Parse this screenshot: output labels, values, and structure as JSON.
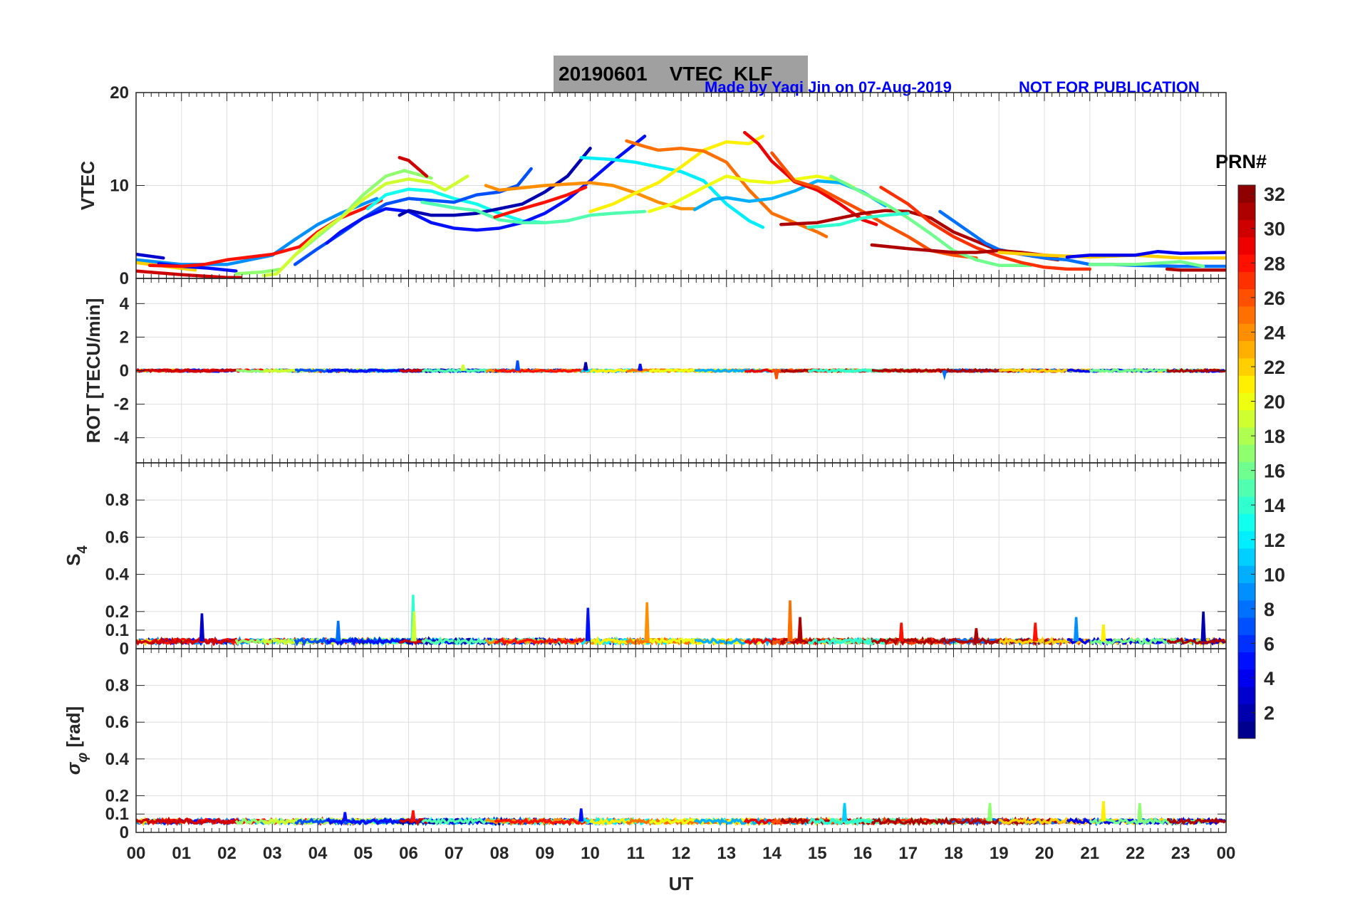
{
  "header": {
    "title": "20190601    VTEC  KLF",
    "credit": "Made by Yaqi Jin on 07-Aug-2019",
    "notice": "NOT FOR PUBLICATION"
  },
  "chart_data": {
    "type": "line",
    "x_axis": {
      "label": "UT",
      "range": [
        0,
        24
      ],
      "tick_labels": [
        "00",
        "01",
        "02",
        "03",
        "04",
        "05",
        "06",
        "07",
        "08",
        "09",
        "10",
        "11",
        "12",
        "13",
        "14",
        "15",
        "16",
        "17",
        "18",
        "19",
        "20",
        "21",
        "22",
        "23",
        "00"
      ]
    },
    "colorbar": {
      "label": "PRN#",
      "range": [
        1,
        32
      ],
      "colormap": "jet",
      "tick_labels": [
        "2",
        "4",
        "6",
        "8",
        "10",
        "12",
        "14",
        "16",
        "18",
        "20",
        "22",
        "24",
        "26",
        "28",
        "30",
        "32"
      ]
    },
    "panels": [
      {
        "id": "vtec",
        "ylabel": "VTEC",
        "ylim": [
          0,
          20
        ],
        "ticks": [
          0,
          10,
          20
        ],
        "tick_labels": [
          "0",
          "10",
          "20"
        ],
        "series": [
          {
            "prn": 3,
            "x": [
              0,
              0.3,
              0.6
            ],
            "y": [
              2.6,
              2.4,
              2.2
            ]
          },
          {
            "prn": 9,
            "x": [
              0,
              1,
              2,
              3,
              3.5,
              4,
              4.5,
              5,
              5.3
            ],
            "y": [
              2.0,
              1.5,
              1.5,
              2.5,
              4.2,
              5.8,
              7.0,
              8.0,
              8.6
            ]
          },
          {
            "prn": 22,
            "x": [
              0,
              0.8,
              1.3
            ],
            "y": [
              1.7,
              1.2,
              0.9
            ]
          },
          {
            "prn": 5,
            "x": [
              0.5,
              1,
              1.6,
              2.2
            ],
            "y": [
              1.6,
              1.3,
              1.1,
              0.8
            ]
          },
          {
            "prn": 28,
            "x": [
              0.3,
              1,
              1.5,
              2,
              2.5,
              3,
              3.6,
              4,
              4.5,
              5,
              5.4
            ],
            "y": [
              1.4,
              1.3,
              1.5,
              2.0,
              2.3,
              2.6,
              3.4,
              5.0,
              6.5,
              7.5,
              8.4
            ]
          },
          {
            "prn": 30,
            "x": [
              0,
              1,
              2,
              2.3
            ],
            "y": [
              0.8,
              0.4,
              0.1,
              0.1
            ]
          },
          {
            "prn": 17,
            "x": [
              2.2,
              2.8,
              3.2,
              3.5,
              4,
              4.5,
              5,
              5.5,
              5.9,
              6.2,
              6.5
            ],
            "y": [
              0.5,
              0.7,
              1.0,
              2.5,
              4.5,
              6.5,
              9.0,
              11.0,
              11.6,
              11.2,
              10.8
            ]
          },
          {
            "prn": 19,
            "x": [
              2.8,
              3.1,
              3.5,
              4,
              4.5,
              5,
              5.5,
              6,
              6.5,
              6.8,
              7.3
            ],
            "y": [
              0.3,
              0.5,
              2.5,
              4.8,
              6.5,
              8.5,
              10.2,
              10.7,
              10.3,
              9.5,
              11.0
            ]
          },
          {
            "prn": 13,
            "x": [
              5.1,
              5.5,
              6,
              6.5,
              7,
              7.5,
              8,
              8.5,
              9
            ],
            "y": [
              7.5,
              9.0,
              9.6,
              9.4,
              8.6,
              8.0,
              7.0,
              6.2,
              6.0
            ]
          },
          {
            "prn": 7,
            "x": [
              3.5,
              4,
              4.5,
              5,
              5.5,
              6,
              6.5,
              7,
              7.5,
              8,
              8.4,
              8.7
            ],
            "y": [
              1.5,
              3.2,
              4.8,
              6.5,
              8.0,
              8.6,
              8.4,
              8.2,
              9.0,
              9.3,
              10.0,
              11.8
            ]
          },
          {
            "prn": 5,
            "x": [
              4.2,
              4.5,
              5,
              5.5,
              6,
              6.5,
              7,
              7.5,
              8,
              8.5,
              9,
              9.5,
              10,
              10.5,
              11.2
            ],
            "y": [
              3.8,
              5.0,
              6.5,
              7.5,
              7.2,
              6.0,
              5.4,
              5.2,
              5.4,
              6.0,
              7.0,
              8.5,
              10.5,
              12.6,
              15.3
            ]
          },
          {
            "prn": 2,
            "x": [
              5.8,
              6,
              6.5,
              7,
              7.5,
              8,
              8.5,
              9,
              9.5,
              10
            ],
            "y": [
              6.8,
              7.3,
              6.8,
              6.8,
              7.0,
              7.5,
              8.0,
              9.3,
              11.0,
              14.0
            ]
          },
          {
            "prn": 30,
            "x": [
              5.8,
              6,
              6.4
            ],
            "y": [
              13.0,
              12.7,
              11.0
            ]
          },
          {
            "prn": 15,
            "x": [
              6.3,
              7,
              7.5,
              8,
              8.5,
              9,
              9.5,
              10,
              10.5,
              11.2
            ],
            "y": [
              8.2,
              7.6,
              7.3,
              6.3,
              6.0,
              6.0,
              6.2,
              6.8,
              7.0,
              7.2
            ]
          },
          {
            "prn": 24,
            "x": [
              7.7,
              8,
              9,
              10,
              10.5,
              11,
              11.5,
              12,
              12.3
            ],
            "y": [
              10.0,
              9.5,
              10.0,
              10.3,
              10.0,
              9.2,
              8.2,
              7.5,
              7.5
            ]
          },
          {
            "prn": 28,
            "x": [
              7.9,
              8.5,
              9,
              9.5,
              9.9
            ],
            "y": [
              6.6,
              7.5,
              8.2,
              9.0,
              9.8
            ]
          },
          {
            "prn": 12,
            "x": [
              9.8,
              10.5,
              11,
              11.5,
              12,
              12.5,
              13,
              13.5,
              13.8
            ],
            "y": [
              13.0,
              12.8,
              12.5,
              12.0,
              11.5,
              10.5,
              8.0,
              6.2,
              5.5
            ]
          },
          {
            "prn": 21,
            "x": [
              10,
              10.5,
              11,
              11.5,
              12,
              12.5,
              13,
              13.5,
              13.8
            ],
            "y": [
              7.2,
              8.0,
              9.2,
              10.3,
              12.0,
              13.8,
              14.7,
              14.5,
              15.3
            ]
          },
          {
            "prn": 25,
            "x": [
              10.8,
              11.2,
              11.5,
              12,
              12.5,
              13,
              13.5,
              14,
              14.5,
              15,
              15.2
            ],
            "y": [
              14.8,
              14.2,
              13.8,
              14.0,
              13.7,
              12.5,
              9.5,
              7.0,
              6.0,
              5.0,
              4.5
            ]
          },
          {
            "prn": 20,
            "x": [
              11.3,
              11.8,
              12.5,
              13,
              13.5,
              14,
              15,
              15.5,
              15.8
            ],
            "y": [
              7.2,
              8.0,
              9.8,
              11.0,
              10.5,
              10.3,
              11.0,
              10.5,
              9.8
            ]
          },
          {
            "prn": 10,
            "x": [
              12.3,
              12.7,
              13,
              13.5,
              14,
              14.5,
              15,
              15.5,
              16,
              16.5
            ],
            "y": [
              7.4,
              8.5,
              8.7,
              8.3,
              8.6,
              9.4,
              10.5,
              10.3,
              9.3,
              7.8
            ]
          },
          {
            "prn": 29,
            "x": [
              13.4,
              13.7,
              14,
              14.3,
              14.5,
              15,
              15.5,
              16,
              16.3
            ],
            "y": [
              15.7,
              14.5,
              12.6,
              11.3,
              10.4,
              9.5,
              8.0,
              6.3,
              5.8
            ]
          },
          {
            "prn": 26,
            "x": [
              14,
              14.5,
              15,
              15.5,
              16,
              16.5,
              17,
              17.5,
              18,
              18.5
            ],
            "y": [
              13.5,
              10.5,
              9.8,
              8.5,
              7.2,
              5.8,
              4.5,
              3.0,
              2.5,
              2.2
            ]
          },
          {
            "prn": 31,
            "x": [
              14.2,
              15,
              15.5,
              16,
              16.5,
              17,
              17.5,
              18,
              18.5,
              19,
              19.5,
              20,
              20.3
            ],
            "y": [
              5.8,
              6.0,
              6.5,
              7.0,
              7.3,
              7.2,
              6.5,
              5.0,
              4.0,
              3.0,
              2.6,
              2.2,
              2.0
            ]
          },
          {
            "prn": 16,
            "x": [
              15.3,
              15.7,
              16,
              16.5,
              17,
              17.5,
              18,
              18.5,
              19,
              19.7
            ],
            "y": [
              11.0,
              10.0,
              9.2,
              8.0,
              6.5,
              4.8,
              3.0,
              2.0,
              1.4,
              1.4
            ]
          },
          {
            "prn": 14,
            "x": [
              14.8,
              15.5,
              16,
              16.5,
              17
            ],
            "y": [
              5.5,
              5.8,
              6.5,
              6.8,
              7.0
            ]
          },
          {
            "prn": 27,
            "x": [
              16.4,
              17,
              17.5,
              18,
              18.5,
              19,
              19.5,
              20,
              20.5,
              21
            ],
            "y": [
              9.8,
              8.0,
              6.0,
              4.5,
              3.3,
              2.4,
              1.7,
              1.2,
              1.0,
              1.0
            ]
          },
          {
            "prn": 8,
            "x": [
              17.7,
              18.2,
              18.7,
              19,
              19.5,
              20,
              20.5,
              21,
              21.5,
              22,
              23,
              24
            ],
            "y": [
              7.2,
              5.5,
              3.8,
              3.1,
              2.6,
              2.2,
              2.0,
              1.5,
              1.5,
              1.4,
              1.3,
              1.3
            ]
          },
          {
            "prn": 31,
            "x": [
              16.2,
              17,
              18,
              18.5,
              19,
              19.5,
              20,
              20.3
            ],
            "y": [
              3.6,
              3.2,
              2.8,
              2.8,
              3.0,
              2.8,
              2.5,
              2.4
            ]
          },
          {
            "prn": 22,
            "x": [
              19,
              20,
              21,
              22,
              23,
              24
            ],
            "y": [
              2.8,
              2.5,
              2.3,
              2.5,
              2.2,
              2.2
            ]
          },
          {
            "prn": 4,
            "x": [
              20.5,
              21,
              22,
              22.5,
              23,
              24
            ],
            "y": [
              2.3,
              2.5,
              2.5,
              2.9,
              2.7,
              2.8
            ]
          },
          {
            "prn": 16,
            "x": [
              21,
              22,
              23,
              23.5
            ],
            "y": [
              1.5,
              1.5,
              1.8,
              1.3
            ]
          },
          {
            "prn": 31,
            "x": [
              22.7,
              23,
              24
            ],
            "y": [
              1.0,
              0.9,
              0.9
            ]
          }
        ]
      },
      {
        "id": "rot",
        "ylabel": "ROT [TECU/min]",
        "ylim": [
          -5.5,
          5.5
        ],
        "ticks": [
          -4,
          -2,
          0,
          2,
          4
        ],
        "tick_labels": [
          "-4",
          "-2",
          "0",
          "2",
          "4"
        ],
        "baseline": 0.0,
        "noise": 0.06,
        "spikes": [
          {
            "prn": 7,
            "x": 8.4,
            "y": 0.6
          },
          {
            "prn": 2,
            "x": 9.9,
            "y": 0.5
          },
          {
            "prn": 5,
            "x": 11.1,
            "y": 0.4
          },
          {
            "prn": 19,
            "x": 7.2,
            "y": 0.35
          },
          {
            "prn": 26,
            "x": 14.1,
            "y": -0.5
          },
          {
            "prn": 8,
            "x": 17.8,
            "y": -0.3
          }
        ]
      },
      {
        "id": "s4",
        "ylabel": "S4",
        "ylim": [
          0,
          1.0
        ],
        "ticks": [
          0,
          0.1,
          0.2,
          0.4,
          0.6,
          0.8
        ],
        "tick_labels": [
          "0",
          "0.1",
          "0.2",
          "0.4",
          "0.6",
          "0.8"
        ],
        "baseline": 0.04,
        "noise": 0.012,
        "spikes": [
          {
            "prn": 3,
            "x": 1.45,
            "y": 0.19
          },
          {
            "prn": 8,
            "x": 4.45,
            "y": 0.15
          },
          {
            "prn": 14,
            "x": 6.1,
            "y": 0.29
          },
          {
            "prn": 19,
            "x": 6.12,
            "y": 0.2
          },
          {
            "prn": 5,
            "x": 9.95,
            "y": 0.22
          },
          {
            "prn": 24,
            "x": 11.25,
            "y": 0.25
          },
          {
            "prn": 25,
            "x": 14.4,
            "y": 0.26
          },
          {
            "prn": 31,
            "x": 14.62,
            "y": 0.17
          },
          {
            "prn": 28,
            "x": 16.85,
            "y": 0.14
          },
          {
            "prn": 28,
            "x": 19.8,
            "y": 0.14
          },
          {
            "prn": 9,
            "x": 20.7,
            "y": 0.17
          },
          {
            "prn": 21,
            "x": 21.3,
            "y": 0.13
          },
          {
            "prn": 2,
            "x": 23.5,
            "y": 0.2
          },
          {
            "prn": 31,
            "x": 18.5,
            "y": 0.11
          }
        ]
      },
      {
        "id": "sigma",
        "ylabel": "σ_φ [rad]",
        "ylabel_main": "σ",
        "ylabel_sub": "φ",
        "ylabel_unit": " [rad]",
        "ylim": [
          0,
          1.0
        ],
        "ticks": [
          0,
          0.1,
          0.2,
          0.4,
          0.6,
          0.8
        ],
        "tick_labels": [
          "0",
          "0.1",
          "0.2",
          "0.4",
          "0.6",
          "0.8"
        ],
        "baseline": 0.06,
        "noise": 0.012,
        "spikes": [
          {
            "prn": 5,
            "x": 9.8,
            "y": 0.13
          },
          {
            "prn": 11,
            "x": 15.6,
            "y": 0.16
          },
          {
            "prn": 17,
            "x": 18.8,
            "y": 0.16
          },
          {
            "prn": 21,
            "x": 21.3,
            "y": 0.17
          },
          {
            "prn": 17,
            "x": 22.1,
            "y": 0.16
          },
          {
            "prn": 5,
            "x": 4.6,
            "y": 0.11
          },
          {
            "prn": 28,
            "x": 6.1,
            "y": 0.12
          }
        ]
      }
    ]
  }
}
